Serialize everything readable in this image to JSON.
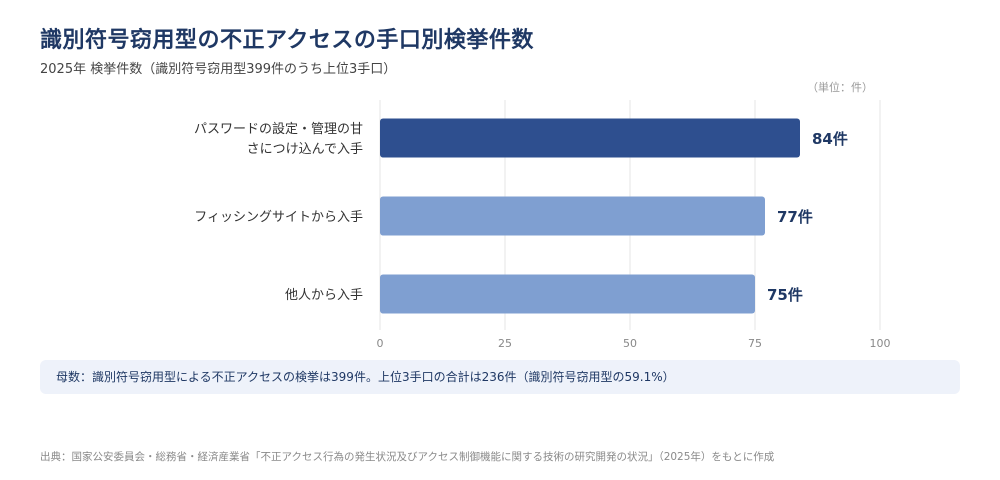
{
  "title": "識別符号窃用型の不正アクセスの手口別検挙件数",
  "subtitle": "2025年 検挙件数（識別符号窃用型399件のうち上位3手口）",
  "unit_note": "（単位：件）",
  "note": "母数：識別符号窃用型による不正アクセスの検挙は399件。上位3手口の合計は236件（識別符号窃用型の59.1%）",
  "source": "出典：国家公安委員会・総務省・経済産業省「不正アクセス行為の発生状況及びアクセス制御機能に関する技術の研究開発の状況」（2025年）をもとに作成",
  "colors": {
    "highlight": "#2e4f8f",
    "normal": "#7f9fd1",
    "title": "#1f3864"
  },
  "chart_data": {
    "type": "bar",
    "orientation": "horizontal",
    "categories": [
      [
        "パスワードの設定・管理の甘",
        "さにつけ込んで入手"
      ],
      [
        "フィッシングサイトから入手"
      ],
      [
        "他人から入手"
      ]
    ],
    "values": [
      84,
      77,
      75
    ],
    "value_labels": [
      "84件",
      "77件",
      "75件"
    ],
    "xlim": [
      0,
      100
    ],
    "xticks": [
      "0",
      "25",
      "50",
      "75",
      "100"
    ],
    "grid": true
  }
}
